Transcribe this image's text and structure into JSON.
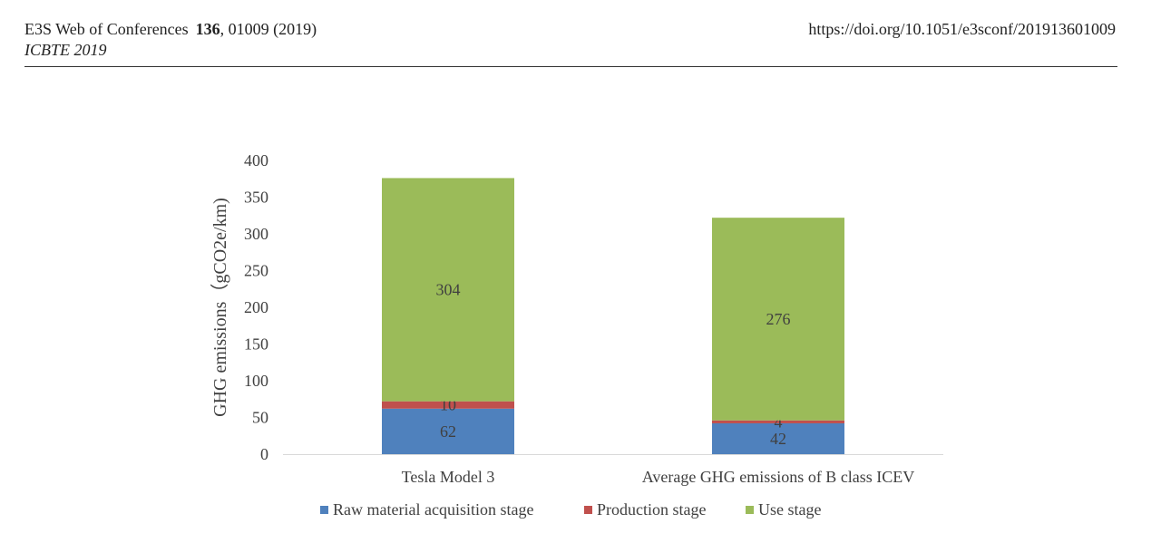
{
  "header": {
    "journal": "E3S Web of Conferences",
    "volume": "136",
    "article": ", 01009 (2019)",
    "conference": "ICBTE 2019",
    "doi": "https://doi.org/10.1051/e3sconf/201913601009"
  },
  "colors": {
    "raw": "#4f81bd",
    "production": "#c0504d",
    "use": "#9bbb59",
    "axis": "#d9d9d9",
    "text": "#404040"
  },
  "chart_data": {
    "type": "bar",
    "stacked": true,
    "title": "",
    "xlabel": "",
    "ylabel": "GHG emissions（gCO2e/km)",
    "ylim": [
      0,
      400
    ],
    "yticks": [
      0,
      50,
      100,
      150,
      200,
      250,
      300,
      350,
      400
    ],
    "grid": false,
    "legend_position": "bottom",
    "categories": [
      "Tesla Model 3",
      "Average GHG emissions of B class ICEV"
    ],
    "series": [
      {
        "name": "Raw material acquisition stage",
        "color": "#4f81bd",
        "values": [
          62,
          42
        ]
      },
      {
        "name": "Production stage",
        "color": "#c0504d",
        "values": [
          10,
          4
        ]
      },
      {
        "name": "Use stage",
        "color": "#9bbb59",
        "values": [
          304,
          276
        ]
      }
    ]
  }
}
